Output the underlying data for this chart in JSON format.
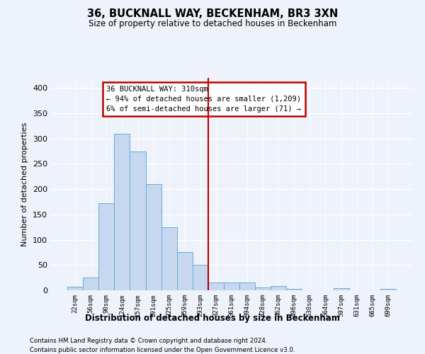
{
  "title": "36, BUCKNALL WAY, BECKENHAM, BR3 3XN",
  "subtitle": "Size of property relative to detached houses in Beckenham",
  "xlabel": "Distribution of detached houses by size in Beckenham",
  "ylabel": "Number of detached properties",
  "bar_labels": [
    "22sqm",
    "56sqm",
    "90sqm",
    "124sqm",
    "157sqm",
    "191sqm",
    "225sqm",
    "259sqm",
    "293sqm",
    "327sqm",
    "361sqm",
    "394sqm",
    "428sqm",
    "462sqm",
    "496sqm",
    "530sqm",
    "564sqm",
    "597sqm",
    "631sqm",
    "665sqm",
    "699sqm"
  ],
  "bar_values": [
    7,
    25,
    172,
    310,
    275,
    210,
    125,
    75,
    50,
    16,
    15,
    15,
    5,
    8,
    3,
    0,
    0,
    4,
    0,
    0,
    3
  ],
  "bar_color": "#c5d8f0",
  "bar_edge_color": "#6aaad4",
  "background_color": "#eef2fb",
  "grid_color": "#ffffff",
  "vline_x_index": 8,
  "vline_color": "#bb0000",
  "annotation_text": "36 BUCKNALL WAY: 310sqm\n← 94% of detached houses are smaller (1,209)\n6% of semi-detached houses are larger (71) →",
  "annotation_box_facecolor": "#ffffff",
  "annotation_box_edgecolor": "#bb0000",
  "ylim": [
    0,
    420
  ],
  "yticks": [
    0,
    50,
    100,
    150,
    200,
    250,
    300,
    350,
    400
  ],
  "footer1": "Contains HM Land Registry data © Crown copyright and database right 2024.",
  "footer2": "Contains public sector information licensed under the Open Government Licence v3.0."
}
